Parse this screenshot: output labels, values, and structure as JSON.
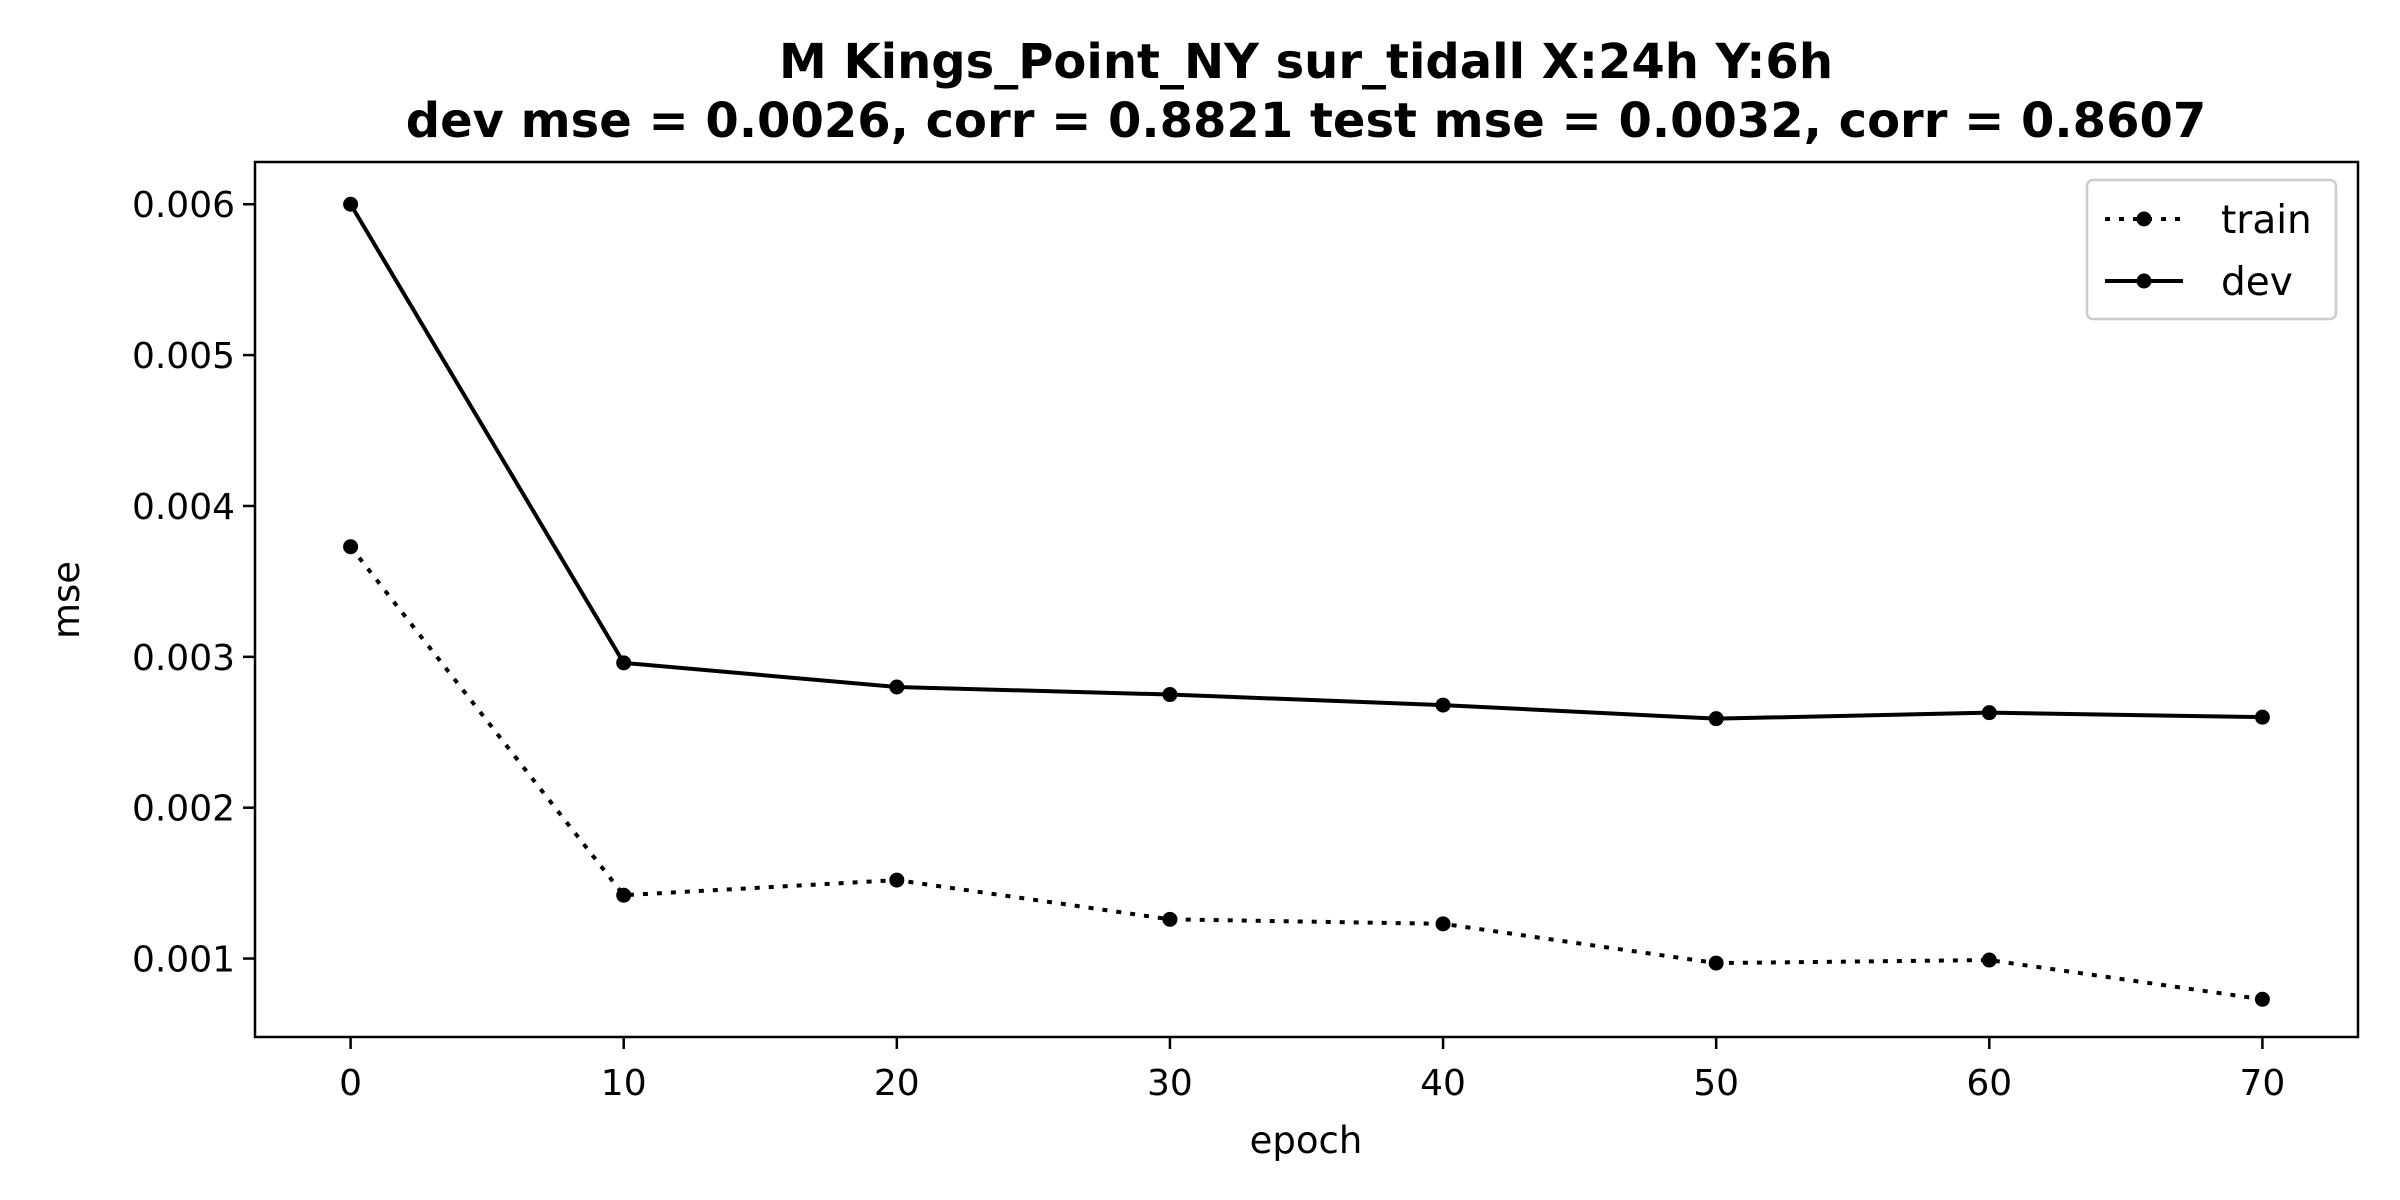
{
  "chart_data": {
    "type": "line",
    "title": "M Kings_Point_NY   sur_tidall   X:24h   Y:6h",
    "subtitle": "dev mse = 0.0026, corr = 0.8821   test mse = 0.0032, corr = 0.8607",
    "xlabel": "epoch",
    "ylabel": "mse",
    "xlim": [
      -3.5,
      73.5
    ],
    "ylim": [
      0.00048,
      0.00628
    ],
    "x_ticks": [
      0,
      10,
      20,
      30,
      40,
      50,
      60,
      70
    ],
    "x_tick_labels": [
      "0",
      "10",
      "20",
      "30",
      "40",
      "50",
      "60",
      "70"
    ],
    "y_ticks": [
      0.001,
      0.002,
      0.003,
      0.004,
      0.005,
      0.006
    ],
    "y_tick_labels": [
      "0.001",
      "0.002",
      "0.003",
      "0.004",
      "0.005",
      "0.006"
    ],
    "x": [
      0,
      10,
      20,
      30,
      40,
      50,
      60,
      70
    ],
    "series": [
      {
        "name": "train",
        "style": "dotted",
        "color": "#000000",
        "values": [
          0.00373,
          0.00142,
          0.00152,
          0.00126,
          0.00123,
          0.00097,
          0.00099,
          0.00073
        ]
      },
      {
        "name": "dev",
        "style": "solid",
        "color": "#000000",
        "values": [
          0.006,
          0.00296,
          0.0028,
          0.00275,
          0.00268,
          0.00259,
          0.00263,
          0.0026
        ]
      }
    ],
    "legend_position": "top-right",
    "grid": false
  }
}
